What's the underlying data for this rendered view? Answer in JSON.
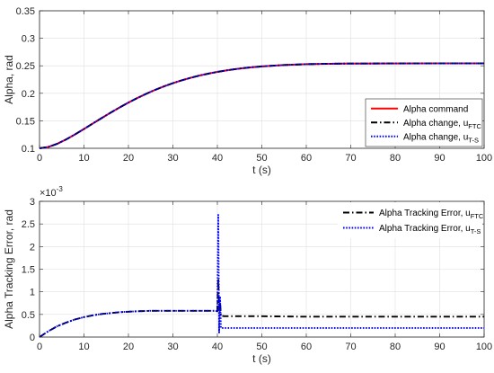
{
  "chart_data": [
    {
      "type": "line",
      "xlabel": "t (s)",
      "ylabel": "Alpha, rad",
      "xlim": [
        0,
        100
      ],
      "ylim": [
        0.1,
        0.35
      ],
      "xticks": [
        "0",
        "10",
        "20",
        "30",
        "40",
        "50",
        "60",
        "70",
        "80",
        "90",
        "100"
      ],
      "yticks": [
        "0.1",
        "0.15",
        "0.2",
        "0.25",
        "0.3",
        "0.35"
      ],
      "grid": true,
      "legend_position": "bottom-right",
      "x": [
        0,
        2,
        4,
        6,
        8,
        10,
        12,
        14,
        16,
        18,
        20,
        22,
        24,
        26,
        28,
        30,
        32,
        34,
        36,
        38,
        40,
        42,
        44,
        46,
        48,
        50,
        55,
        60,
        65,
        70,
        80,
        90,
        100
      ],
      "series": [
        {
          "legend": "Alpha command",
          "legend_sub": "",
          "color": "#ff0000",
          "style": "solid",
          "y": [
            0.1,
            0.1025,
            0.1083,
            0.1162,
            0.1253,
            0.1351,
            0.1451,
            0.1551,
            0.1648,
            0.1742,
            0.1831,
            0.1914,
            0.1991,
            0.2062,
            0.2126,
            0.2184,
            0.2236,
            0.2282,
            0.2323,
            0.2358,
            0.2389,
            0.2416,
            0.2439,
            0.2459,
            0.2475,
            0.2489,
            0.2514,
            0.2529,
            0.2537,
            0.2541,
            0.2543,
            0.2544,
            0.2544
          ]
        },
        {
          "legend": "Alpha change, u",
          "legend_sub": "FTC",
          "color": "#000000",
          "style": "dashdot",
          "y": [
            0.1,
            0.1025,
            0.1083,
            0.1162,
            0.1253,
            0.1351,
            0.1451,
            0.1551,
            0.1648,
            0.1742,
            0.1831,
            0.1914,
            0.1991,
            0.2062,
            0.2126,
            0.2184,
            0.2236,
            0.2282,
            0.2323,
            0.2358,
            0.2389,
            0.2416,
            0.2439,
            0.2459,
            0.2475,
            0.2489,
            0.2514,
            0.2529,
            0.2537,
            0.2541,
            0.2543,
            0.2544,
            0.2544
          ]
        },
        {
          "legend": "Alpha change, u",
          "legend_sub": "T-S",
          "color": "#0000ff",
          "style": "dotted",
          "y": [
            0.1,
            0.1025,
            0.1083,
            0.1162,
            0.1253,
            0.1351,
            0.1451,
            0.1551,
            0.1648,
            0.1742,
            0.1831,
            0.1914,
            0.1991,
            0.2062,
            0.2126,
            0.2184,
            0.2236,
            0.2282,
            0.2323,
            0.2358,
            0.2389,
            0.2416,
            0.2439,
            0.2459,
            0.2475,
            0.2489,
            0.2514,
            0.2529,
            0.2537,
            0.2541,
            0.2543,
            0.2544,
            0.2544
          ]
        }
      ]
    },
    {
      "type": "line",
      "xlabel": "t (s)",
      "ylabel": "Alpha Tracking Error, rad",
      "y_multiplier": "×10",
      "y_multiplier_exp": "-3",
      "xlim": [
        0,
        100
      ],
      "ylim": [
        0,
        0.003
      ],
      "xticks": [
        "0",
        "10",
        "20",
        "30",
        "40",
        "50",
        "60",
        "70",
        "80",
        "90",
        "100"
      ],
      "yticks": [
        "0",
        "0.5",
        "1",
        "1.5",
        "2",
        "2.5",
        "3"
      ],
      "grid": true,
      "legend_position": "top-right",
      "series": [
        {
          "legend": "Alpha Tracking Error, u",
          "legend_sub": "FTC",
          "color": "#000000",
          "style": "dashdot",
          "x": [
            0,
            2,
            4,
            6,
            8,
            10,
            12,
            14,
            16,
            18,
            20,
            22,
            25,
            28,
            31,
            34,
            37,
            39.5,
            40,
            40.2,
            40.4,
            40.6,
            40.8,
            41,
            41.5,
            42,
            50,
            60,
            70,
            80,
            90,
            100
          ],
          "y": [
            0,
            0.00013,
            0.00024,
            0.00032,
            0.00039,
            0.00044,
            0.00048,
            0.00051,
            0.00053,
            0.00055,
            0.00056,
            0.00057,
            0.00058,
            0.00058,
            0.00058,
            0.00058,
            0.00058,
            0.00058,
            0.00057,
            0.0013,
            0.0006,
            0.0008,
            0.00046,
            0.00047,
            0.00046,
            0.00046,
            0.00046,
            0.00045,
            0.00045,
            0.00045,
            0.00045,
            0.00045
          ]
        },
        {
          "legend": "Alpha Tracking Error, u",
          "legend_sub": "T-S",
          "color": "#0000ff",
          "style": "dotted",
          "x": [
            0,
            2,
            4,
            6,
            8,
            10,
            12,
            14,
            16,
            18,
            20,
            22,
            25,
            28,
            31,
            34,
            37,
            39.5,
            40,
            40.2,
            40.4,
            40.6,
            40.8,
            41,
            42,
            50,
            60,
            70,
            80,
            90,
            100
          ],
          "y": [
            0,
            0.00013,
            0.00024,
            0.00032,
            0.00039,
            0.00044,
            0.00048,
            0.00051,
            0.00053,
            0.00055,
            0.00056,
            0.00057,
            0.00058,
            0.00058,
            0.00058,
            0.00058,
            0.00058,
            0.00058,
            0.00057,
            0.0027,
            0.0001,
            0.0009,
            0.0002,
            0.0002,
            0.0002,
            0.0002,
            0.0002,
            0.0002,
            0.0002,
            0.0002,
            0.0002
          ]
        }
      ]
    }
  ]
}
